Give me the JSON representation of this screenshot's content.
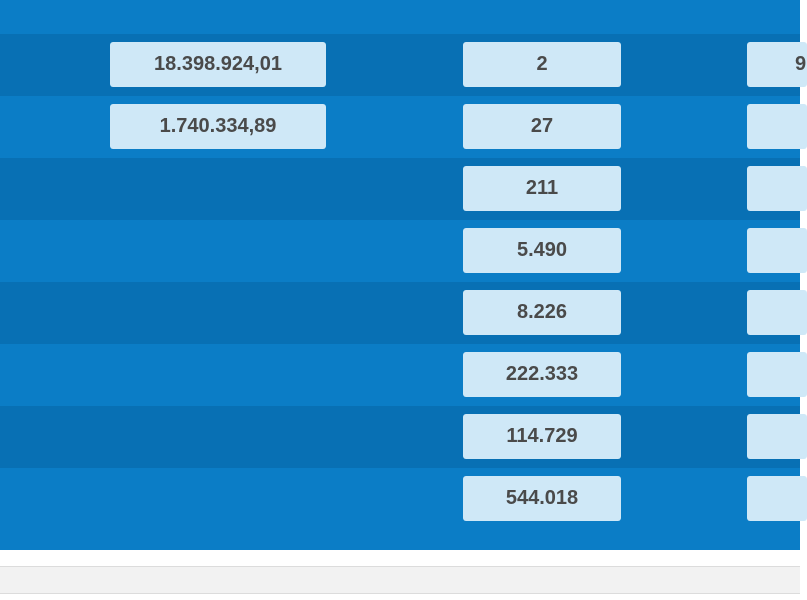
{
  "table": {
    "rows": [
      {
        "amount": "18.398.924,01",
        "count": "2",
        "third": "9"
      },
      {
        "amount": "1.740.334,89",
        "count": "27",
        "third": ""
      },
      {
        "amount": "",
        "count": "211",
        "third": ""
      },
      {
        "amount": "",
        "count": "5.490",
        "third": ""
      },
      {
        "amount": "",
        "count": "8.226",
        "third": ""
      },
      {
        "amount": "",
        "count": "222.333",
        "third": ""
      },
      {
        "amount": "",
        "count": "114.729",
        "third": ""
      },
      {
        "amount": "",
        "count": "544.018",
        "third": ""
      }
    ]
  },
  "colors": {
    "panel_blue": "#0b7dc6",
    "row_dark_blue": "#0870b4",
    "cell_fill": "#cfe8f7",
    "cell_text": "#4a4a4a"
  }
}
